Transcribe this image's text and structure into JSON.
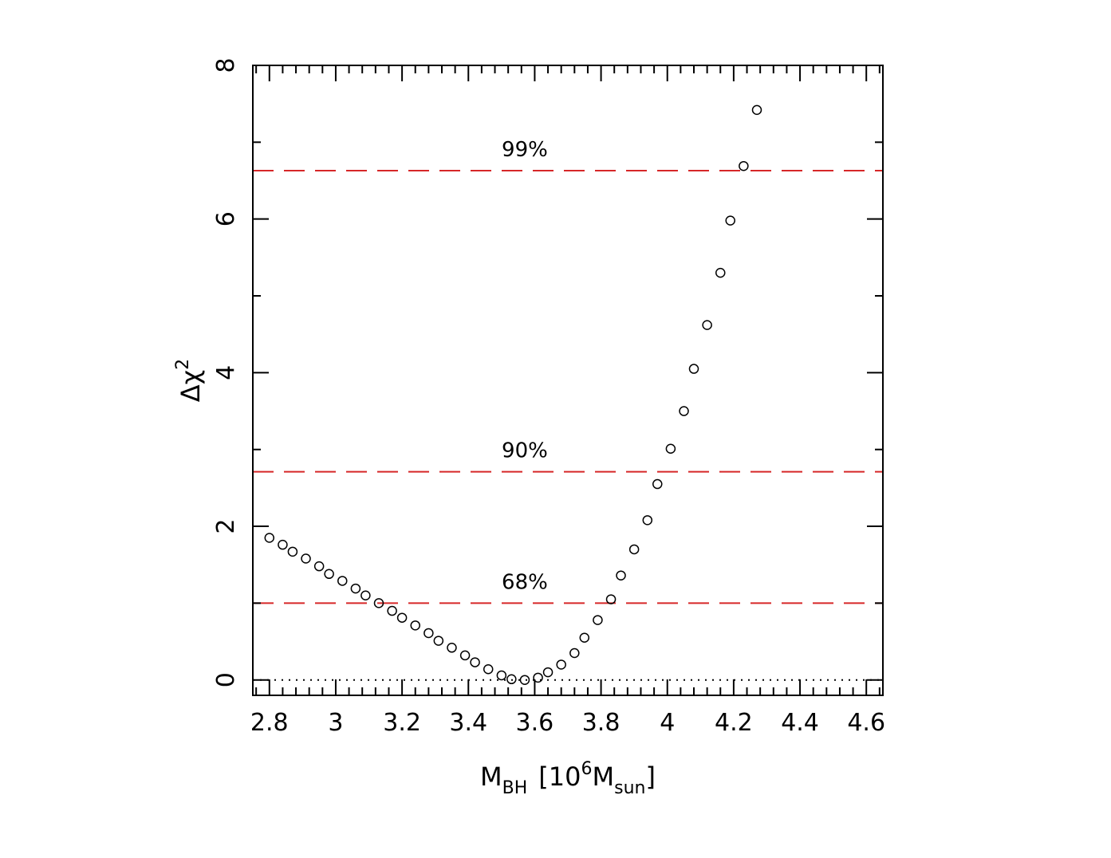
{
  "chart_data": {
    "type": "scatter",
    "title": "",
    "xlabel": {
      "main": "M",
      "sub1": "BH",
      "bracket_open": "[10",
      "sup": "6",
      "unit_main": "M",
      "sub2": "sun",
      "bracket_close": "]"
    },
    "ylabel": {
      "main": "Δχ",
      "sup": "2"
    },
    "xlim": [
      2.75,
      4.65
    ],
    "ylim": [
      -0.2,
      8
    ],
    "x_ticks": [
      2.8,
      3.0,
      3.2,
      3.4,
      3.6,
      3.8,
      4.0,
      4.2,
      4.4,
      4.6
    ],
    "x_tick_labels": [
      "2.8",
      "3",
      "3.2",
      "3.4",
      "3.6",
      "3.8",
      "4",
      "4.2",
      "4.4",
      "4.6"
    ],
    "y_ticks": [
      0,
      2,
      4,
      6,
      8
    ],
    "y_tick_labels": [
      "0",
      "2",
      "4",
      "6",
      "8"
    ],
    "grid": false,
    "marker": "open-circle",
    "series": [
      {
        "x": [
          2.8,
          2.84,
          2.87,
          2.91,
          2.95,
          2.98,
          3.02,
          3.06,
          3.09,
          3.13,
          3.17,
          3.2,
          3.24,
          3.28,
          3.31,
          3.35,
          3.39,
          3.42,
          3.46,
          3.5,
          3.53,
          3.57,
          3.61,
          3.64,
          3.68,
          3.72,
          3.75,
          3.79,
          3.83,
          3.86,
          3.9,
          3.94,
          3.97,
          4.01,
          4.05,
          4.08,
          4.12,
          4.16,
          4.19,
          4.23,
          4.27
        ],
        "y": [
          1.85,
          1.76,
          1.67,
          1.58,
          1.48,
          1.38,
          1.29,
          1.19,
          1.1,
          1.0,
          0.9,
          0.81,
          0.71,
          0.61,
          0.51,
          0.42,
          0.32,
          0.23,
          0.14,
          0.06,
          0.01,
          0.0,
          0.03,
          0.1,
          0.2,
          0.35,
          0.55,
          0.78,
          1.05,
          1.36,
          1.7,
          2.08,
          2.55,
          3.01,
          3.5,
          4.05,
          4.62,
          5.3,
          5.98,
          6.69,
          7.42
        ]
      }
    ],
    "reference_lines": [
      {
        "y": 0,
        "style": "dotted",
        "color": "#000000",
        "label": ""
      },
      {
        "y": 1.0,
        "style": "dashed",
        "color": "#d62728",
        "label": "68%"
      },
      {
        "y": 2.71,
        "style": "dashed",
        "color": "#d62728",
        "label": "90%"
      },
      {
        "y": 6.63,
        "style": "dashed",
        "color": "#d62728",
        "label": "99%"
      }
    ],
    "level_label_x": 3.57
  }
}
